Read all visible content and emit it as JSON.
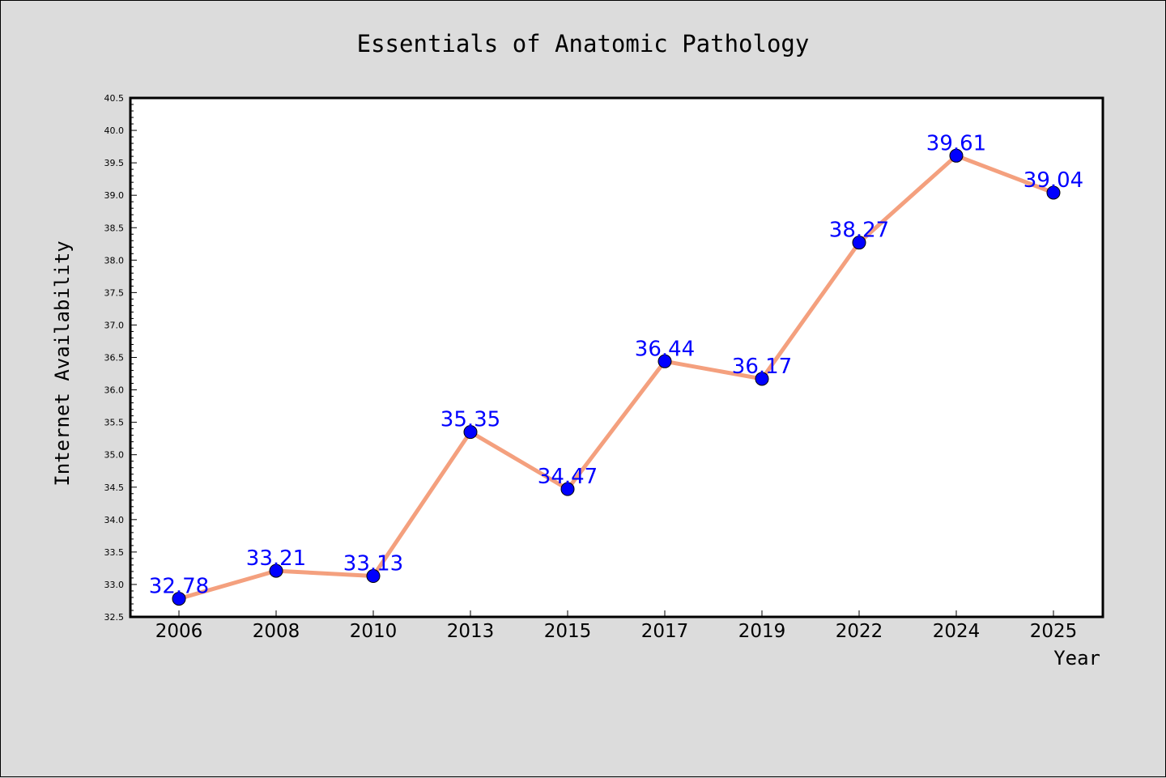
{
  "chart_data": {
    "type": "line",
    "title": "Essentials of Anatomic Pathology",
    "xlabel": "Year",
    "ylabel": "Internet Availability",
    "categories": [
      "2006",
      "2008",
      "2010",
      "2013",
      "2015",
      "2017",
      "2019",
      "2022",
      "2024",
      "2025"
    ],
    "values": [
      32.78,
      33.21,
      33.13,
      35.35,
      34.47,
      36.44,
      36.17,
      38.27,
      39.61,
      39.04
    ],
    "data_labels": [
      "32.78",
      "33.21",
      "33.13",
      "35.35",
      "34.47",
      "36.44",
      "36.17",
      "38.27",
      "39.61",
      "39.04"
    ],
    "ylim": [
      32.5,
      40.5
    ],
    "yticks": [
      "32.5",
      "33.0",
      "33.5",
      "34.0",
      "34.5",
      "35.0",
      "35.5",
      "36.0",
      "36.5",
      "37.0",
      "37.5",
      "38.0",
      "38.5",
      "39.0",
      "39.5",
      "40.0",
      "40.5"
    ],
    "grid": false,
    "legend": "none",
    "colors": {
      "line": "#f4a07e",
      "marker": "#0000ff",
      "data_label": "#0000ff",
      "background": "#dcdcdc",
      "plot_background": "#ffffff"
    }
  }
}
